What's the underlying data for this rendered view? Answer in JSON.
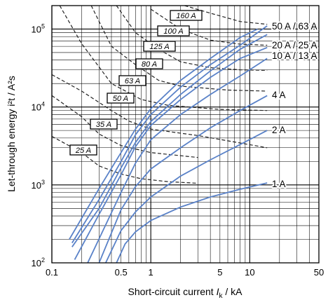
{
  "chart_data": {
    "type": "line",
    "xlabel": "Short-circuit current I_k / kA",
    "xlabel_parts": {
      "pre": "Short-circuit current ",
      "var": "I",
      "sub": "k",
      "post": " / kA"
    },
    "ylabel": "Let-through energy i²t / A²s",
    "x_scale": "log",
    "y_scale": "log",
    "xlim": [
      0.1,
      50
    ],
    "ylim": [
      100,
      200000
    ],
    "grid": true,
    "x_ticks": [
      {
        "value": 0.1,
        "label": "0.1"
      },
      {
        "value": 0.5,
        "label": "0.5"
      },
      {
        "value": 1,
        "label": "1"
      },
      {
        "value": 5,
        "label": "5"
      },
      {
        "value": 10,
        "label": "10"
      },
      {
        "value": 50,
        "label": "50"
      }
    ],
    "y_ticks": [
      {
        "value": 100,
        "base": "10",
        "exp": "2"
      },
      {
        "value": 1000,
        "base": "10",
        "exp": "3"
      },
      {
        "value": 10000,
        "base": "10",
        "exp": "4"
      },
      {
        "value": 100000,
        "base": "10",
        "exp": "5"
      }
    ],
    "colors": {
      "mcb_curve": "#5a82c8",
      "fuse_curve": "#222222",
      "grid": "#000000"
    },
    "series": [
      {
        "name": "1 A",
        "style": "solid",
        "points": [
          [
            0.45,
            100
          ],
          [
            0.55,
            175
          ],
          [
            0.7,
            250
          ],
          [
            1,
            350
          ],
          [
            2,
            520
          ],
          [
            4,
            700
          ],
          [
            8,
            880
          ],
          [
            15,
            1060
          ]
        ]
      },
      {
        "name": "2 A",
        "style": "solid",
        "points": [
          [
            0.35,
            100
          ],
          [
            0.5,
            260
          ],
          [
            0.7,
            450
          ],
          [
            1,
            700
          ],
          [
            2,
            1300
          ],
          [
            4,
            2100
          ],
          [
            8,
            3300
          ],
          [
            15,
            5000
          ]
        ]
      },
      {
        "name": "4 A",
        "style": "solid",
        "points": [
          [
            0.3,
            100
          ],
          [
            0.5,
            480
          ],
          [
            0.7,
            950
          ],
          [
            1,
            1600
          ],
          [
            2,
            3000
          ],
          [
            4,
            5400
          ],
          [
            8,
            9000
          ],
          [
            15,
            14000
          ]
        ]
      },
      {
        "name": "10 A / 13 A",
        "style": "solid",
        "points": [
          [
            0.23,
            100
          ],
          [
            0.5,
            800
          ],
          [
            0.7,
            1900
          ],
          [
            1,
            3800
          ],
          [
            2,
            8000
          ],
          [
            4,
            14500
          ],
          [
            8,
            25000
          ],
          [
            15,
            42000
          ]
        ]
      },
      {
        "name": "20 A / 25 A",
        "style": "solid",
        "points": [
          [
            0.17,
            110
          ],
          [
            0.3,
            420
          ],
          [
            0.5,
            1350
          ],
          [
            0.7,
            3100
          ],
          [
            1,
            5800
          ],
          [
            2,
            12500
          ],
          [
            4,
            24000
          ],
          [
            8,
            42000
          ],
          [
            15,
            58000
          ]
        ]
      },
      {
        "name": "50 A / 63 A",
        "style": "solid",
        "points": [
          [
            0.16,
            180
          ],
          [
            0.3,
            650
          ],
          [
            0.5,
            2000
          ],
          [
            0.7,
            4400
          ],
          [
            1,
            8000
          ],
          [
            2,
            18000
          ],
          [
            4,
            35000
          ],
          [
            8,
            62000
          ],
          [
            15,
            110000
          ]
        ]
      },
      {
        "name": "",
        "style": "solid",
        "points": [
          [
            0.15,
            200
          ],
          [
            0.3,
            900
          ],
          [
            0.5,
            2600
          ],
          [
            0.7,
            5200
          ],
          [
            1,
            9500
          ],
          [
            2,
            22000
          ],
          [
            4,
            42000
          ],
          [
            8,
            78000
          ],
          [
            12,
            100000
          ]
        ]
      },
      {
        "name": "",
        "style": "solid",
        "points": [
          [
            0.16,
            160
          ],
          [
            0.3,
            500
          ],
          [
            0.5,
            1650
          ],
          [
            0.7,
            3500
          ],
          [
            1,
            6500
          ],
          [
            2,
            14500
          ],
          [
            4,
            29000
          ],
          [
            8,
            55000
          ],
          [
            15,
            85000
          ]
        ]
      }
    ],
    "fuse_curves": [
      {
        "name": "25 A",
        "style": "dashed",
        "points": [
          [
            0.1,
            4200
          ],
          [
            0.2,
            2600
          ],
          [
            0.3,
            1750
          ],
          [
            0.5,
            1380
          ],
          [
            0.8,
            1200
          ],
          [
            1.5,
            1100
          ],
          [
            3,
            1050
          ]
        ]
      },
      {
        "name": "35 A",
        "style": "dashed",
        "points": [
          [
            0.1,
            14000
          ],
          [
            0.2,
            7500
          ],
          [
            0.3,
            4500
          ],
          [
            0.5,
            3200
          ],
          [
            1,
            2600
          ],
          [
            3,
            2250
          ]
        ]
      },
      {
        "name": "50 A",
        "style": "dashed",
        "points": [
          [
            0.1,
            26000
          ],
          [
            0.2,
            16000
          ],
          [
            0.4,
            9000
          ],
          [
            0.6,
            6600
          ],
          [
            1,
            5200
          ],
          [
            3,
            4300
          ],
          [
            15,
            3000
          ]
        ]
      },
      {
        "name": "63 A",
        "style": "dashed",
        "points": [
          [
            0.12,
            200000
          ],
          [
            0.2,
            65000
          ],
          [
            0.4,
            20000
          ],
          [
            0.8,
            12500
          ],
          [
            1.5,
            10500
          ],
          [
            5,
            9300
          ],
          [
            15,
            9000
          ]
        ]
      },
      {
        "name": "80 A",
        "style": "dashed",
        "points": [
          [
            0.25,
            200000
          ],
          [
            0.4,
            60000
          ],
          [
            0.7,
            35000
          ],
          [
            1.2,
            22000
          ],
          [
            2,
            18500
          ],
          [
            6,
            16500
          ],
          [
            15,
            16000
          ]
        ]
      },
      {
        "name": "125 A",
        "style": "dashed",
        "points": [
          [
            0.45,
            200000
          ],
          [
            0.7,
            90000
          ],
          [
            1.2,
            55000
          ],
          [
            2,
            38000
          ],
          [
            4,
            32000
          ],
          [
            8,
            30000
          ],
          [
            15,
            29500
          ]
        ]
      },
      {
        "name": "100 A",
        "style": "dashed",
        "points": [
          [
            1,
            180000
          ],
          [
            2,
            100000
          ],
          [
            4,
            72000
          ],
          [
            8,
            64000
          ],
          [
            15,
            62000
          ]
        ]
      },
      {
        "name": "160 A",
        "style": "dashed",
        "points": [
          [
            2.2,
            200000
          ],
          [
            4,
            160000
          ],
          [
            8,
            125000
          ],
          [
            15,
            115000
          ]
        ]
      }
    ],
    "curve_labels": [
      "50 A / 63 A",
      "20 A / 25 A",
      "10 A / 13 A",
      "4 A",
      "2 A",
      "1 A"
    ],
    "fuse_labels": [
      "160 A",
      "100 A",
      "125 A",
      "80 A",
      "63 A",
      "50 A",
      "35 A",
      "25 A"
    ]
  }
}
